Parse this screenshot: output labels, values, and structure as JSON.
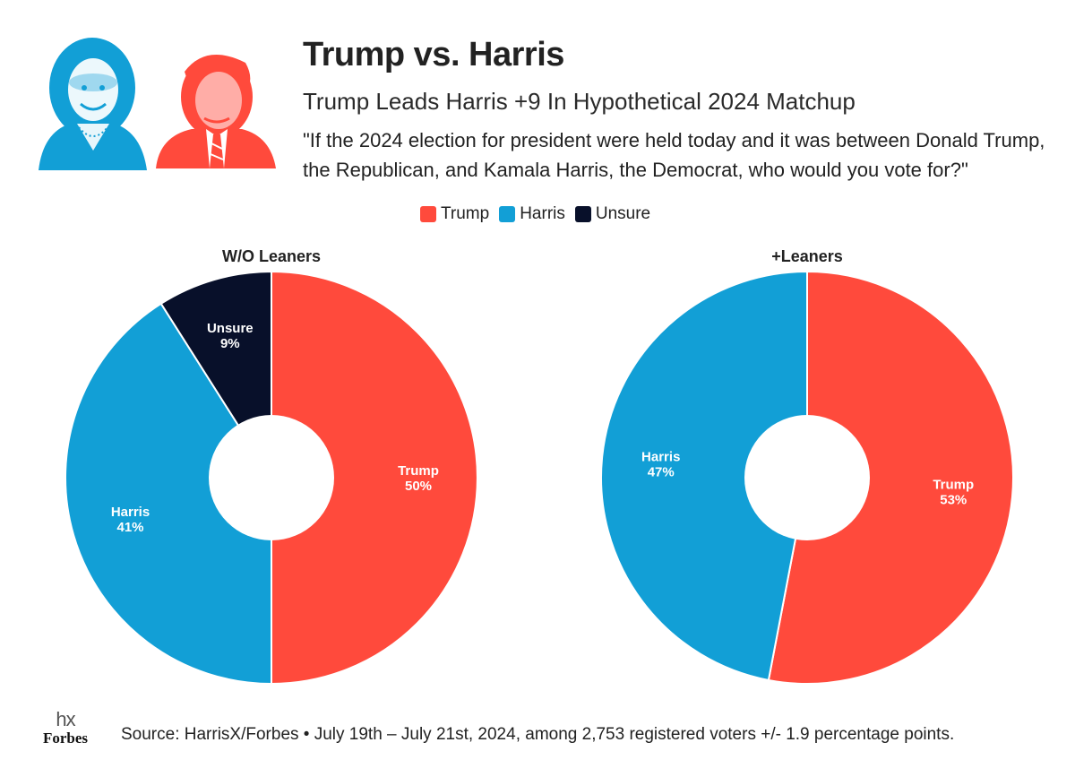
{
  "header": {
    "title": "Trump vs. Harris",
    "subtitle": "Trump Leads Harris +9 In Hypothetical 2024 Matchup",
    "question": "\"If the 2024 election for president were held today and it was between Donald Trump, the Republican, and Kamala Harris, the Democrat, who would you vote for?\""
  },
  "colors": {
    "trump": "#ff4a3c",
    "harris": "#129fd6",
    "unsure": "#08102a"
  },
  "legend": [
    {
      "label": "Trump",
      "color": "#ff4a3c"
    },
    {
      "label": "Harris",
      "color": "#129fd6"
    },
    {
      "label": "Unsure",
      "color": "#08102a"
    }
  ],
  "chart_data": [
    {
      "type": "pie",
      "title": "W/O Leaners",
      "donut": true,
      "slices": [
        {
          "label": "Trump",
          "value": 50,
          "display": "50%",
          "color": "#ff4a3c"
        },
        {
          "label": "Harris",
          "value": 41,
          "display": "41%",
          "color": "#129fd6"
        },
        {
          "label": "Unsure",
          "value": 9,
          "display": "9%",
          "color": "#08102a"
        }
      ]
    },
    {
      "type": "pie",
      "title": "+Leaners",
      "donut": true,
      "slices": [
        {
          "label": "Trump",
          "value": 53,
          "display": "53%",
          "color": "#ff4a3c"
        },
        {
          "label": "Harris",
          "value": 47,
          "display": "47%",
          "color": "#129fd6"
        }
      ]
    }
  ],
  "footer": {
    "logo_hx": "hx",
    "logo_forbes": "Forbes",
    "source": "Source: HarrisX/Forbes • July 19th – July 21st, 2024, among 2,753 registered voters +/- 1.9 percentage points."
  }
}
